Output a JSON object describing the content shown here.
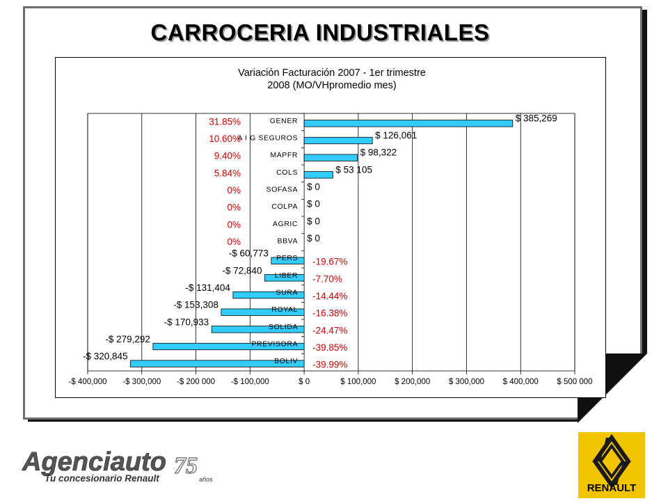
{
  "slide": {
    "title": "CARROCERIA INDUSTRIALES"
  },
  "colors": {
    "bar_fill": "#33ccff",
    "pct_text": "#cc0000",
    "frame_border": "#6e6e6e"
  },
  "logos": {
    "agenciauto_brand": "Agenciauto",
    "agenciauto_tagline": "Tu concesionario Renault",
    "agenciauto_anniv_number": "75",
    "agenciauto_anniv_word": "años",
    "renault_word": "RENAULT"
  },
  "chart_data": {
    "type": "bar",
    "orientation": "horizontal",
    "title_lines": [
      "Variación Facturación  2007 - 1er trimestre",
      "2008 (MO/VHpromedio mes)"
    ],
    "categories": [
      "GENER",
      "A I G SEGUROS",
      "MAPFR",
      "COLS",
      "SOFASA",
      "COLPA",
      "AGRIC",
      "BBVA",
      "PERS",
      "LIBER",
      "SURA",
      "ROYAL",
      "SOLIDA",
      "PREVISORA",
      "BOLIV"
    ],
    "values": [
      385269,
      126061,
      98322,
      53105,
      0,
      0,
      0,
      0,
      -60773,
      -72840,
      -131404,
      -153308,
      -170933,
      -279292,
      -320845
    ],
    "value_labels": [
      "$ 385,269",
      "$ 126,061",
      "$ 98,322",
      "$ 53 105",
      "$ 0",
      "$ 0",
      "$ 0",
      "$ 0",
      "-$ 60,773",
      "-$ 72,840",
      "-$ 131,404",
      "-$ 153,308",
      "-$ 170,933",
      "-$ 279,292",
      "-$ 320,845"
    ],
    "percent_labels": [
      "31.85%",
      "10.60%",
      "9.40%",
      "5.84%",
      "0%",
      "0%",
      "0%",
      "0%",
      "-19.67%",
      "-7.70%",
      "-14.44%",
      "-16.38%",
      "-24.47%",
      "-39.85%",
      "-39.99%"
    ],
    "xlim": [
      -400000,
      500000
    ],
    "x_ticks": [
      -400000,
      -300000,
      -200000,
      -100000,
      0,
      100000,
      200000,
      300000,
      400000,
      500000
    ],
    "x_tick_labels": [
      "-$ 400,000",
      "-$ 300,000",
      "-$ 200 000",
      "-$ 100,000",
      "$ 0",
      "$ 100,000",
      "$ 200,000",
      "$ 300,000",
      "$ 400,000",
      "$ 500 000"
    ],
    "grid": true,
    "legend": "none"
  }
}
